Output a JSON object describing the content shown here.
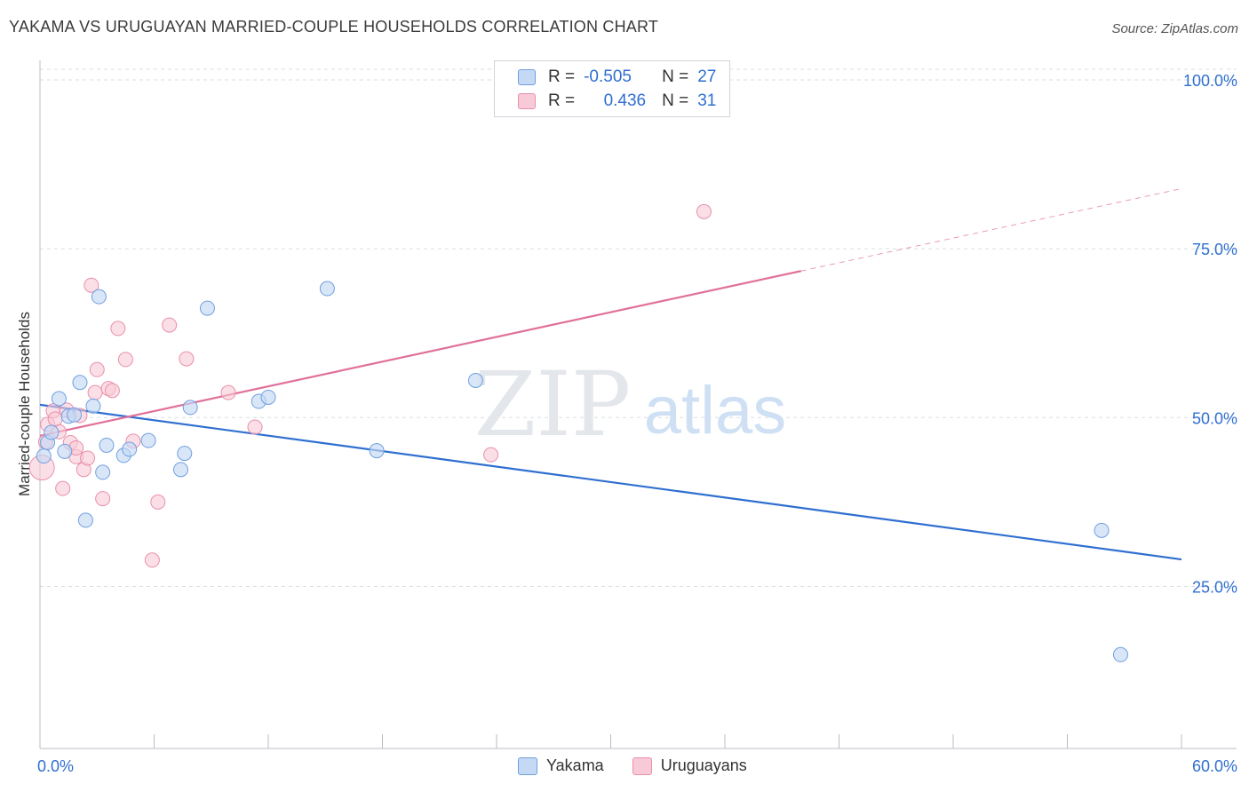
{
  "title": "YAKAMA VS URUGUAYAN MARRIED-COUPLE HOUSEHOLDS CORRELATION CHART",
  "source": "Source: ZipAtlas.com",
  "watermark": {
    "zip": "ZIP",
    "atlas": "atlas"
  },
  "legend": {
    "rows": [
      {
        "r_label": "R =",
        "r_value": "-0.505",
        "n_label": "N =",
        "n_value": "27"
      },
      {
        "r_label": "R =",
        "r_value": "0.436",
        "n_label": "N =",
        "n_value": "31"
      }
    ]
  },
  "bottom_legend": {
    "yakama": "Yakama",
    "uruguayans": "Uruguayans"
  },
  "colors": {
    "yakama_fill": "#c5d9f5",
    "yakama_stroke": "#6f9fe0",
    "yakama_line": "#2f6fd0",
    "uru_fill": "#f8c9d6",
    "uru_stroke": "#e98fab",
    "uru_line": "#e0709a",
    "grid": "#d9dde2",
    "axis_label": "#2f6fd0"
  },
  "chart_data": {
    "type": "scatter",
    "title": "YAKAMA VS URUGUAYAN MARRIED-COUPLE HOUSEHOLDS CORRELATION CHART",
    "xlabel": "",
    "ylabel": "Married-couple Households",
    "xlim": [
      0,
      60
    ],
    "ylim": [
      0,
      103
    ],
    "x_tick_labels": [
      "0.0%",
      "60.0%"
    ],
    "y_ticks": [
      25,
      50,
      75,
      100
    ],
    "y_tick_labels": [
      "25.0%",
      "50.0%",
      "75.0%",
      "100.0%"
    ],
    "series": [
      {
        "name": "Yakama",
        "points": [
          [
            0.2,
            44.3
          ],
          [
            0.4,
            46.3
          ],
          [
            0.6,
            47.8
          ],
          [
            1.0,
            52.8
          ],
          [
            1.3,
            45.0
          ],
          [
            1.5,
            50.2
          ],
          [
            1.8,
            50.4
          ],
          [
            2.1,
            55.2
          ],
          [
            2.4,
            34.8
          ],
          [
            2.8,
            51.7
          ],
          [
            3.1,
            67.9
          ],
          [
            3.3,
            41.9
          ],
          [
            3.5,
            45.9
          ],
          [
            4.4,
            44.4
          ],
          [
            4.7,
            45.3
          ],
          [
            5.7,
            46.6
          ],
          [
            7.4,
            42.3
          ],
          [
            7.6,
            44.7
          ],
          [
            7.9,
            51.5
          ],
          [
            8.8,
            66.2
          ],
          [
            11.5,
            52.4
          ],
          [
            12.0,
            53.0
          ],
          [
            15.1,
            69.1
          ],
          [
            17.7,
            45.1
          ],
          [
            22.9,
            55.5
          ],
          [
            55.8,
            33.3
          ],
          [
            56.8,
            14.9
          ]
        ],
        "trend": {
          "x": [
            0,
            60
          ],
          "y": [
            51.9,
            29.0
          ]
        }
      },
      {
        "name": "Uruguayans",
        "points": [
          [
            0.1,
            42.6
          ],
          [
            0.3,
            46.4
          ],
          [
            0.4,
            49.0
          ],
          [
            0.7,
            51.0
          ],
          [
            1.0,
            47.9
          ],
          [
            1.2,
            39.5
          ],
          [
            1.4,
            51.1
          ],
          [
            1.6,
            46.3
          ],
          [
            1.9,
            44.2
          ],
          [
            2.1,
            50.3
          ],
          [
            2.3,
            42.3
          ],
          [
            2.5,
            44.0
          ],
          [
            2.7,
            69.6
          ],
          [
            2.9,
            53.7
          ],
          [
            3.0,
            57.1
          ],
          [
            3.3,
            38.0
          ],
          [
            3.6,
            54.3
          ],
          [
            3.8,
            54.0
          ],
          [
            4.1,
            63.2
          ],
          [
            4.5,
            58.6
          ],
          [
            4.9,
            46.5
          ],
          [
            5.9,
            28.9
          ],
          [
            6.2,
            37.5
          ],
          [
            6.8,
            63.7
          ],
          [
            7.7,
            58.7
          ],
          [
            9.9,
            53.7
          ],
          [
            11.3,
            48.6
          ],
          [
            23.7,
            44.5
          ],
          [
            34.9,
            80.5
          ],
          [
            1.9,
            45.5
          ],
          [
            0.8,
            49.8
          ]
        ],
        "trend": {
          "x": [
            0,
            40
          ],
          "y": [
            47.3,
            71.7
          ],
          "dashed_to": {
            "x": 60,
            "y": 83.9
          }
        }
      }
    ]
  }
}
